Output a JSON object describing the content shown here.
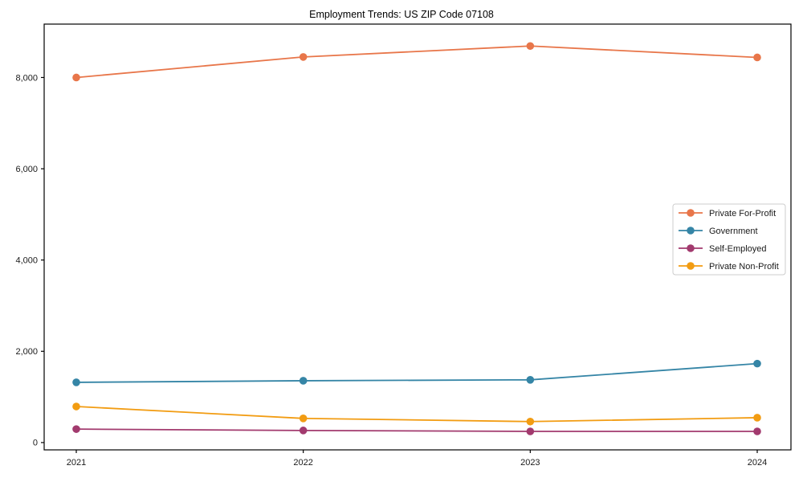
{
  "figure": {
    "title": "Employment Trends: US ZIP Code 07108"
  },
  "chart_data": {
    "type": "line",
    "title": "Employment Trends: US ZIP Code 07108",
    "categories": [
      "2021",
      "2022",
      "2023",
      "2024"
    ],
    "series": [
      {
        "name": "Private For-Profit",
        "color": "#e8764a",
        "values": [
          8000,
          8450,
          8690,
          8440
        ]
      },
      {
        "name": "Government",
        "color": "#3585a6",
        "values": [
          1320,
          1355,
          1375,
          1730
        ]
      },
      {
        "name": "Self-Employed",
        "color": "#a23a6e",
        "values": [
          295,
          265,
          245,
          245
        ]
      },
      {
        "name": "Private Non-Profit",
        "color": "#f29c12",
        "values": [
          790,
          530,
          460,
          545
        ]
      }
    ],
    "xlabel": "",
    "ylabel": "",
    "ylim": [
      -160,
      9170
    ],
    "yticks": [
      0,
      2000,
      4000,
      6000,
      8000
    ],
    "ytick_labels": [
      "0",
      "2,000",
      "4,000",
      "6,000",
      "8,000"
    ],
    "grid": false,
    "marker": "circle",
    "legend_position": "center right",
    "colors": {
      "spine": "#000000",
      "legend_border": "#cccccc",
      "background": "#ffffff"
    }
  }
}
